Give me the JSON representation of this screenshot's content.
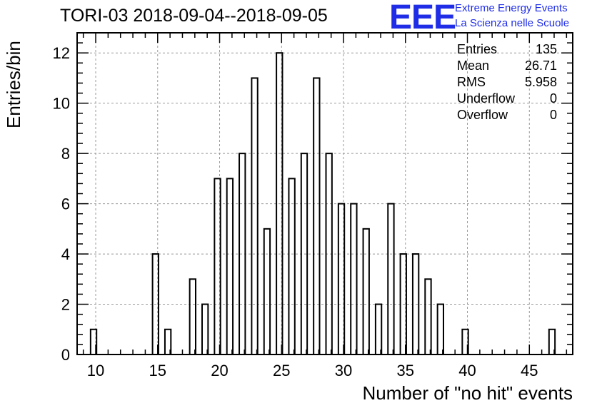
{
  "title": "TORI-03 2018-09-04--2018-09-05",
  "logo": {
    "text": "EEE",
    "line1": "Extreme Energy Events",
    "line2": "La Scienza nelle Scuole",
    "color": "#1f2de6"
  },
  "stats": {
    "entries_label": "Entries",
    "entries_value": "135",
    "mean_label": "Mean",
    "mean_value": "26.71",
    "rms_label": "RMS",
    "rms_value": "5.958",
    "underflow_label": "Underflow",
    "underflow_value": "0",
    "overflow_label": "Overflow",
    "overflow_value": "0"
  },
  "chart_data": {
    "type": "bar",
    "title": "TORI-03 2018-09-04--2018-09-05",
    "xlabel": "Number of \"no hit\" events",
    "ylabel": "Entries/bin",
    "xlim": [
      8.5,
      48.5
    ],
    "ylim": [
      0,
      12.8
    ],
    "xticks": [
      10,
      15,
      20,
      25,
      30,
      35,
      40,
      45
    ],
    "yticks": [
      0,
      2,
      4,
      6,
      8,
      10,
      12
    ],
    "grid": true,
    "series": [
      {
        "points": [
          {
            "x": 10,
            "y": 1
          },
          {
            "x": 15,
            "y": 4
          },
          {
            "x": 16,
            "y": 1
          },
          {
            "x": 18,
            "y": 3
          },
          {
            "x": 19,
            "y": 2
          },
          {
            "x": 20,
            "y": 7
          },
          {
            "x": 21,
            "y": 7
          },
          {
            "x": 22,
            "y": 8
          },
          {
            "x": 23,
            "y": 11
          },
          {
            "x": 24,
            "y": 5
          },
          {
            "x": 25,
            "y": 12
          },
          {
            "x": 26,
            "y": 7
          },
          {
            "x": 27,
            "y": 8
          },
          {
            "x": 28,
            "y": 11
          },
          {
            "x": 29,
            "y": 8
          },
          {
            "x": 30,
            "y": 6
          },
          {
            "x": 31,
            "y": 6
          },
          {
            "x": 32,
            "y": 5
          },
          {
            "x": 33,
            "y": 2
          },
          {
            "x": 34,
            "y": 6
          },
          {
            "x": 35,
            "y": 4
          },
          {
            "x": 36,
            "y": 4
          },
          {
            "x": 37,
            "y": 3
          },
          {
            "x": 38,
            "y": 2
          },
          {
            "x": 40,
            "y": 1
          },
          {
            "x": 47,
            "y": 1
          }
        ]
      }
    ]
  }
}
